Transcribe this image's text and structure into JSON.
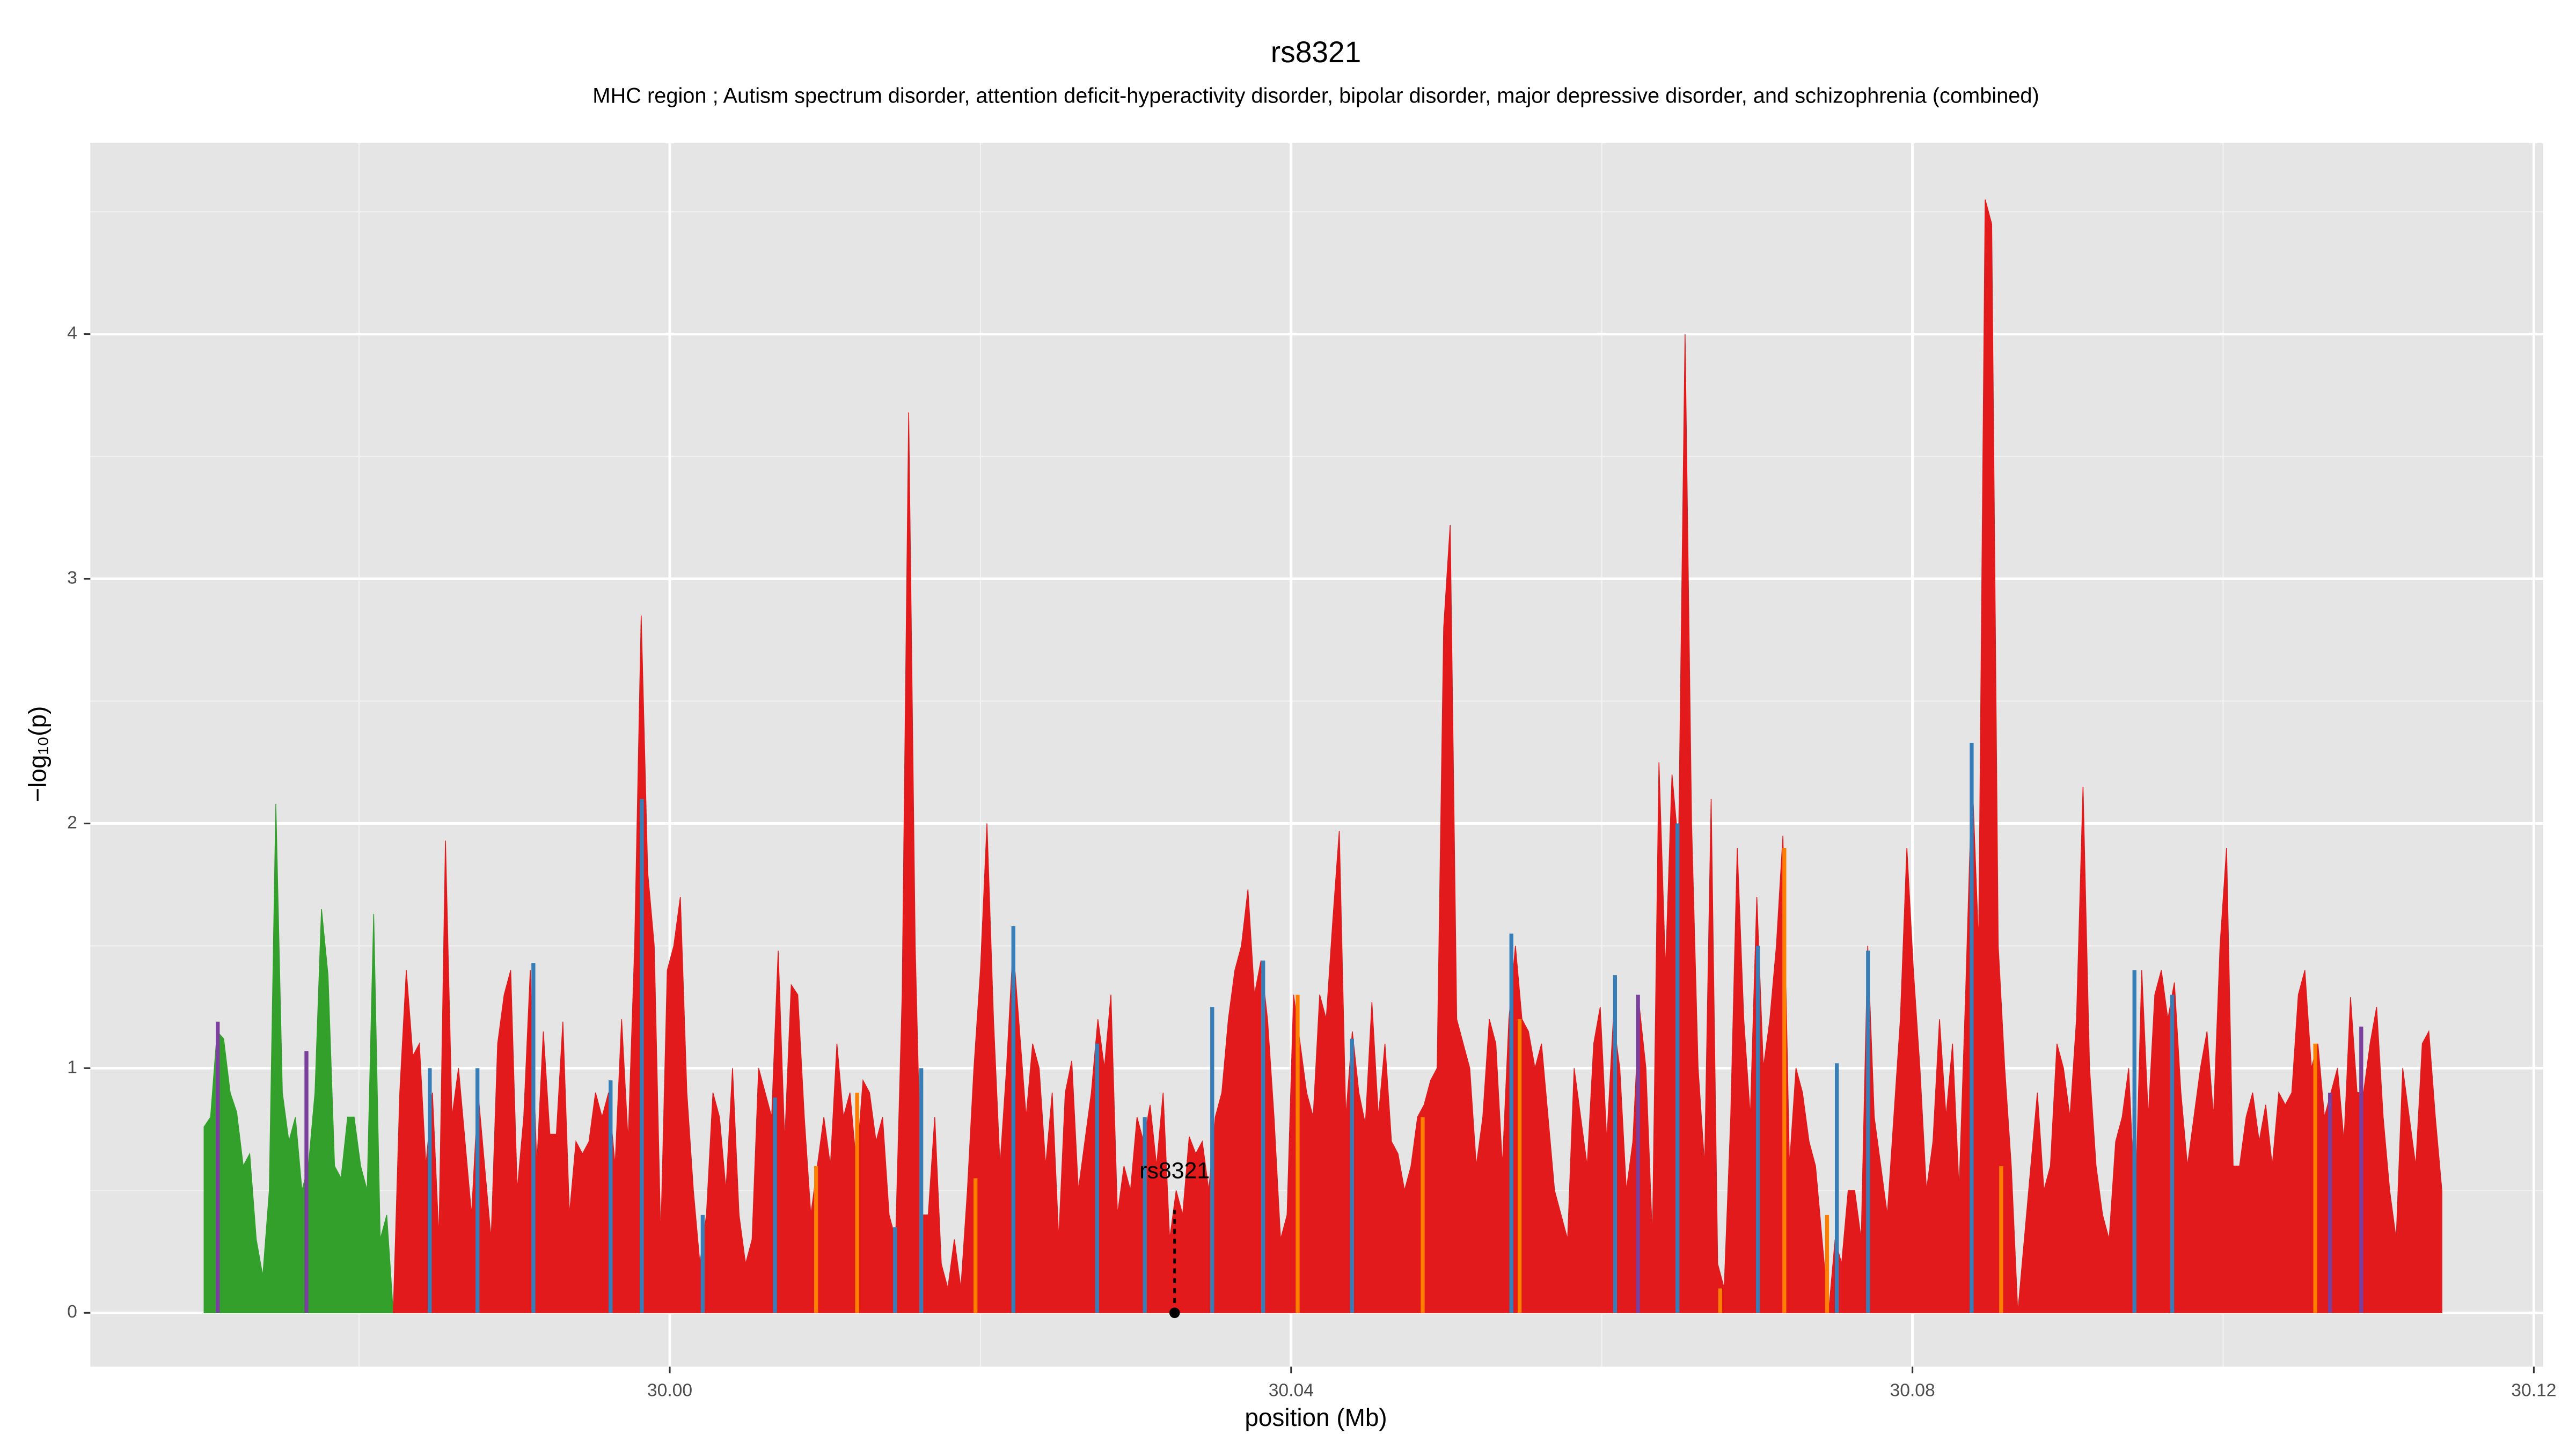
{
  "chart_data": {
    "type": "area",
    "title": "rs8321",
    "subtitle": "MHC region ; Autism spectrum disorder, attention deficit-hyperactivity disorder, bipolar disorder, major depressive disorder, and schizophrenia (combined)",
    "xlabel": "position (Mb)",
    "ylabel": "−log₁₀(p)",
    "xlim": [
      29.9627,
      30.1206
    ],
    "ylim": [
      -0.22,
      4.78
    ],
    "xticks": [
      {
        "value": 30,
        "label": "30.00"
      },
      {
        "value": 30.04,
        "label": "30.04"
      },
      {
        "value": 30.08,
        "label": "30.08"
      },
      {
        "value": 30.12,
        "label": "30.12"
      }
    ],
    "yticks": [
      0,
      1,
      2,
      3,
      4
    ],
    "grid": true,
    "background": "#e5e5e5",
    "series": [
      {
        "color": "#33a02c",
        "style": "area",
        "x": [
          29.97002,
          29.97044,
          29.97086,
          29.97128,
          29.9717,
          29.97212,
          29.97254,
          29.97296,
          29.97338,
          29.9738,
          29.97422,
          29.97464,
          29.97506,
          29.97548,
          29.9759,
          29.97632,
          29.97674,
          29.97716,
          29.97758,
          29.978,
          29.97842,
          29.97884,
          29.97926,
          29.97968,
          29.9801,
          29.98052,
          29.98094,
          29.98136,
          29.98178,
          29.9822
        ],
        "values": [
          0.76,
          0.8,
          1.15,
          1.12,
          0.9,
          0.82,
          0.6,
          0.65,
          0.3,
          0.15,
          0.5,
          2.08,
          0.9,
          0.7,
          0.8,
          0.5,
          0.6,
          0.9,
          1.65,
          1.38,
          0.6,
          0.55,
          0.8,
          0.8,
          0.6,
          0.5,
          1.63,
          0.3,
          0.4,
          0
        ]
      },
      {
        "color": "#e31a1c",
        "style": "area",
        "x": [
          29.9822,
          29.98262,
          29.98304,
          29.98346,
          29.98388,
          29.9843,
          29.98472,
          29.98514,
          29.98556,
          29.98598,
          29.9864,
          29.98682,
          29.98724,
          29.98766,
          29.98808,
          29.9885,
          29.98892,
          29.98934,
          29.98976,
          29.99018,
          29.9906,
          29.99102,
          29.99144,
          29.99186,
          29.99228,
          29.9927,
          29.99312,
          29.99354,
          29.99396,
          29.99438,
          29.9948,
          29.99522,
          29.99564,
          29.99606,
          29.99648,
          29.9969,
          29.99732,
          29.99774,
          29.99816,
          29.99858,
          29.999,
          29.99942,
          29.99984,
          30.00026,
          30.00068,
          30.0011,
          30.00152,
          30.00194,
          30.00236,
          30.00278,
          30.0032,
          30.00362,
          30.00404,
          30.00446,
          30.00488,
          30.0053,
          30.00572,
          30.00614,
          30.00656,
          30.00698,
          30.0074,
          30.00782,
          30.00824,
          30.00866,
          30.00908,
          30.0095,
          30.00992,
          30.01034,
          30.01076,
          30.01118,
          30.0116,
          30.01202,
          30.01244,
          30.01286,
          30.01328,
          30.0137,
          30.01412,
          30.01454,
          30.01496,
          30.01538,
          30.0158,
          30.01622,
          30.01664,
          30.01706,
          30.01748,
          30.0179,
          30.01832,
          30.01874,
          30.01916,
          30.01958,
          30.02,
          30.02042,
          30.02084,
          30.02126,
          30.02168,
          30.0221,
          30.02252,
          30.02294,
          30.02336,
          30.02378,
          30.0242,
          30.02462,
          30.02504,
          30.02546,
          30.02588,
          30.0263,
          30.02672,
          30.02714,
          30.02756,
          30.02798,
          30.0284,
          30.02882,
          30.02924,
          30.02966,
          30.03008,
          30.0305,
          30.03092,
          30.03134,
          30.03176,
          30.03218,
          30.0326,
          30.03302,
          30.03344,
          30.03386,
          30.03428,
          30.0347,
          30.03512,
          30.03554,
          30.03596,
          30.03638,
          30.0368,
          30.03722,
          30.03764,
          30.03806,
          30.03848,
          30.0389,
          30.03932,
          30.03974,
          30.04016,
          30.04058,
          30.041,
          30.04142,
          30.04184,
          30.04226,
          30.04268,
          30.0431,
          30.04352,
          30.04394,
          30.04436,
          30.04478,
          30.0452,
          30.04562,
          30.04604,
          30.04646,
          30.04688,
          30.0473,
          30.04772,
          30.04814,
          30.04856,
          30.04898,
          30.0494,
          30.04982,
          30.05024,
          30.05066,
          30.05108,
          30.0515,
          30.05192,
          30.05234,
          30.05276,
          30.05318,
          30.0536,
          30.05402,
          30.05444,
          30.05486,
          30.05528,
          30.0557,
          30.05612,
          30.05654,
          30.05696,
          30.05738,
          30.0578,
          30.05822,
          30.05864,
          30.05906,
          30.05948,
          30.0599,
          30.06032,
          30.06074,
          30.06116,
          30.06158,
          30.062,
          30.06242,
          30.06284,
          30.06326,
          30.06368,
          30.0641,
          30.06452,
          30.06494,
          30.06536,
          30.06578,
          30.0662,
          30.06662,
          30.06704,
          30.06746,
          30.06788,
          30.0683,
          30.06872,
          30.06914,
          30.06956,
          30.06998,
          30.0704,
          30.07082,
          30.07124,
          30.07166,
          30.07208,
          30.0725,
          30.07292,
          30.07334,
          30.07376,
          30.07418,
          30.0746,
          30.07502,
          30.07544,
          30.07586,
          30.07628,
          30.0767,
          30.07712,
          30.07754,
          30.07796,
          30.07838,
          30.0788,
          30.07922,
          30.07964,
          30.08006,
          30.08048,
          30.0809,
          30.08132,
          30.08174,
          30.08216,
          30.08258,
          30.083,
          30.08342,
          30.08384,
          30.08426,
          30.08468,
          30.0851,
          30.08552,
          30.08594,
          30.08636,
          30.08678,
          30.0872,
          30.08762,
          30.08804,
          30.08846,
          30.08888,
          30.0893,
          30.08972,
          30.09014,
          30.09056,
          30.09098,
          30.0914,
          30.09182,
          30.09224,
          30.09266,
          30.09308,
          30.0935,
          30.09392,
          30.09434,
          30.09476,
          30.09518,
          30.0956,
          30.09602,
          30.09644,
          30.09686,
          30.09728,
          30.0977,
          30.09812,
          30.09854,
          30.09896,
          30.09938,
          30.0998,
          30.10022,
          30.10064,
          30.10106,
          30.10148,
          30.1019,
          30.10232,
          30.10274,
          30.10316,
          30.10358,
          30.104,
          30.10442,
          30.10484,
          30.10526,
          30.10568,
          30.1061,
          30.10652,
          30.10694,
          30.10736,
          30.10778,
          30.1082,
          30.10862,
          30.10904,
          30.10946,
          30.10988,
          30.1103,
          30.11072,
          30.11114,
          30.11156,
          30.11198,
          30.1124,
          30.11282,
          30.11324,
          30.11366,
          30.11408
        ],
        "values": [
          0,
          0.9,
          1.4,
          1.05,
          1.1,
          0.6,
          0.9,
          0.3,
          1.93,
          0.8,
          1.0,
          0.7,
          0.4,
          0.9,
          0.6,
          0.3,
          1.1,
          1.3,
          1.4,
          0.5,
          0.8,
          1.4,
          0.6,
          1.15,
          0.73,
          0.73,
          1.19,
          0.4,
          0.7,
          0.65,
          0.7,
          0.9,
          0.8,
          0.9,
          0.6,
          1.2,
          0.7,
          1.5,
          2.85,
          1.8,
          1.5,
          0.3,
          1.4,
          1.5,
          1.7,
          0.9,
          0.5,
          0.2,
          0.4,
          0.9,
          0.8,
          0.5,
          1.0,
          0.4,
          0.2,
          0.3,
          1.0,
          0.9,
          0.8,
          1.48,
          0.7,
          1.34,
          1.3,
          0.8,
          0.4,
          0.6,
          0.8,
          0.6,
          1.1,
          0.8,
          0.9,
          0.6,
          0.95,
          0.9,
          0.7,
          0.8,
          0.4,
          0.3,
          1.3,
          3.68,
          1.5,
          0.4,
          0.4,
          0.8,
          0.2,
          0.1,
          0.3,
          0.1,
          0.5,
          1.0,
          1.4,
          2.0,
          1.2,
          0.6,
          1.0,
          1.5,
          1.15,
          0.8,
          1.1,
          1.0,
          0.6,
          0.9,
          0.3,
          0.9,
          1.03,
          0.5,
          0.7,
          0.9,
          1.2,
          1.0,
          1.3,
          0.4,
          0.6,
          0.5,
          0.8,
          0.7,
          0.85,
          0.6,
          0.9,
          0.3,
          0.5,
          0.4,
          0.72,
          0.65,
          0.7,
          0.5,
          0.8,
          0.9,
          1.2,
          1.4,
          1.5,
          1.73,
          1.3,
          1.44,
          1.2,
          0.8,
          0.3,
          0.4,
          1.3,
          1.1,
          0.9,
          0.8,
          1.3,
          1.2,
          1.6,
          1.97,
          0.8,
          1.15,
          0.9,
          0.77,
          1.27,
          0.8,
          1.1,
          0.7,
          0.65,
          0.5,
          0.6,
          0.8,
          0.85,
          0.95,
          1.0,
          2.8,
          3.22,
          1.2,
          1.1,
          1.0,
          0.6,
          0.8,
          1.2,
          1.1,
          0.6,
          1.2,
          1.5,
          1.2,
          1.15,
          1.0,
          1.1,
          0.8,
          0.5,
          0.4,
          0.3,
          1.0,
          0.8,
          0.6,
          1.1,
          1.25,
          0.7,
          1.2,
          1.0,
          0.5,
          0.7,
          1.25,
          1.0,
          0.3,
          2.25,
          1.4,
          2.2,
          1.9,
          4.0,
          2.0,
          1.0,
          0.6,
          2.1,
          0.2,
          0.1,
          0.8,
          1.9,
          1.2,
          0.8,
          1.7,
          1.0,
          1.2,
          1.5,
          1.95,
          0.6,
          1.0,
          0.9,
          0.7,
          0.6,
          0.3,
          0,
          0.3,
          0.2,
          0.5,
          0.5,
          0.3,
          1.5,
          0.8,
          0.6,
          0.4,
          0.8,
          1.2,
          1.9,
          1.4,
          1.0,
          0.5,
          0.7,
          1.2,
          0.8,
          1.1,
          0.5,
          1.3,
          2.2,
          1.5,
          4.55,
          4.45,
          1.5,
          1.0,
          0.6,
          0,
          0.3,
          0.6,
          0.9,
          0.5,
          0.6,
          1.1,
          1.0,
          0.8,
          1.2,
          2.15,
          1.0,
          0.6,
          0.4,
          0.3,
          0.7,
          0.8,
          1.0,
          0.4,
          1.4,
          0.8,
          1.3,
          1.4,
          1.2,
          1.35,
          0.9,
          0.6,
          0.8,
          1.0,
          1.15,
          0.8,
          1.5,
          1.9,
          0.6,
          0.6,
          0.8,
          0.9,
          0.7,
          0.85,
          0.6,
          0.9,
          0.85,
          0.9,
          1.3,
          1.4,
          1.0,
          1.1,
          0.8,
          0.9,
          1.0,
          0.7,
          1.29,
          0.9,
          0.9,
          1.1,
          1.25,
          0.8,
          0.5,
          0.3,
          1.0,
          0.8,
          0.6,
          1.1,
          1.15,
          0.8,
          0.5
        ]
      },
      {
        "color": "#7b3f9e",
        "style": "spike",
        "x": [
          29.9709,
          29.97661,
          30.06233,
          30.10688,
          30.10889
        ],
        "values": [
          1.19,
          1.07,
          1.3,
          0.9,
          1.17
        ]
      },
      {
        "color": "#377eb8",
        "style": "spike",
        "x": [
          29.98455,
          29.98762,
          29.99122,
          29.99619,
          29.9982,
          30.00212,
          30.00677,
          30.0145,
          30.01619,
          30.02212,
          30.02751,
          30.03058,
          30.03492,
          30.0382,
          30.04392,
          30.05418,
          30.06085,
          30.06487,
          30.07005,
          30.07513,
          30.07714,
          30.08381,
          30.09429,
          30.09672
        ],
        "values": [
          1.0,
          1.0,
          1.43,
          0.95,
          2.1,
          0.4,
          0.88,
          0.35,
          1.0,
          1.58,
          1.1,
          0.8,
          1.25,
          1.44,
          1.12,
          1.55,
          1.38,
          2.0,
          1.5,
          1.02,
          1.48,
          2.33,
          1.4,
          1.3
        ]
      },
      {
        "color": "#ff7f00",
        "style": "spike",
        "x": [
          30.00942,
          30.01206,
          30.01968,
          30.04042,
          30.04847,
          30.05471,
          30.06762,
          30.07175,
          30.0745,
          30.08571,
          30.10593
        ],
        "values": [
          0.6,
          0.9,
          0.55,
          1.3,
          0.8,
          1.2,
          0.1,
          1.9,
          0.4,
          0.6,
          1.1
        ]
      }
    ],
    "annotation": {
      "text": "rs8321",
      "x": 30.0325,
      "y": 0,
      "line_top": 0.42
    }
  }
}
